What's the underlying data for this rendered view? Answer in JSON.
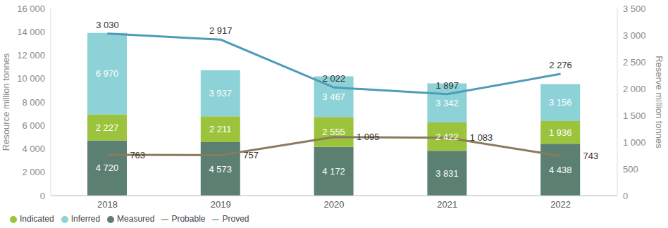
{
  "chart_data": {
    "type": "bar",
    "stacked": true,
    "data_labels": true,
    "legend": "bottom",
    "grid": false,
    "categories": [
      "2018",
      "2019",
      "2020",
      "2021",
      "2022"
    ],
    "ylabel": "Resource million tonnes",
    "y2label": "Reserve million tonnes",
    "ylim": [
      0,
      16000
    ],
    "yticks": [
      0,
      {
        "value": 2000,
        "label": "2 000"
      },
      {
        "value": 4000,
        "label": "4 000"
      },
      {
        "value": 6000,
        "label": "6 000"
      },
      {
        "value": 8000,
        "label": "8 000"
      },
      {
        "value": 10000,
        "label": "10 000"
      },
      {
        "value": 12000,
        "label": "12 000"
      },
      {
        "value": 14000,
        "label": "14 000"
      },
      {
        "value": 16000,
        "label": "16 000"
      }
    ],
    "y2lim": [
      0,
      3500
    ],
    "y2ticks": [
      0,
      500,
      {
        "value": 1000,
        "label": "1 000"
      },
      {
        "value": 1500,
        "label": "1 500"
      },
      {
        "value": 2000,
        "label": "2 000"
      },
      {
        "value": 2500,
        "label": "2 500"
      },
      {
        "value": 3000,
        "label": "3 000"
      },
      {
        "value": 3500,
        "label": "3 500"
      }
    ],
    "series": [
      {
        "name": "Measured",
        "type": "bar",
        "color": "#5b8072",
        "values": [
          4720,
          4573,
          4172,
          3831,
          4438
        ],
        "value_labels": [
          "4 720",
          "4 573",
          "4 172",
          "3 831",
          "4 438"
        ]
      },
      {
        "name": "Indicated",
        "type": "bar",
        "color": "#9cc33c",
        "values": [
          2227,
          2211,
          2555,
          2422,
          1936
        ],
        "value_labels": [
          "2 227",
          "2 211",
          "2 555",
          "2 422",
          "1 936"
        ]
      },
      {
        "name": "Inferred",
        "type": "bar",
        "color": "#8dd2d6",
        "values": [
          6970,
          3937,
          3467,
          3342,
          3156
        ],
        "value_labels": [
          "6 970",
          "3 937",
          "3 467",
          "3 342",
          "3 156"
        ]
      },
      {
        "name": "Proved",
        "type": "line",
        "axis": "y2",
        "color": "#4f9bb9",
        "values": [
          3030,
          2917,
          2022,
          1897,
          2276
        ],
        "value_labels": [
          "3 030",
          "2 917",
          "2 022",
          "1 897",
          "2 276"
        ]
      },
      {
        "name": "Probable",
        "type": "line",
        "axis": "y2",
        "color": "#8a7a5e",
        "values": [
          763,
          757,
          1095,
          1083,
          743
        ],
        "value_labels": [
          "763",
          "757",
          "1 095",
          "1 083",
          "743"
        ]
      }
    ]
  }
}
